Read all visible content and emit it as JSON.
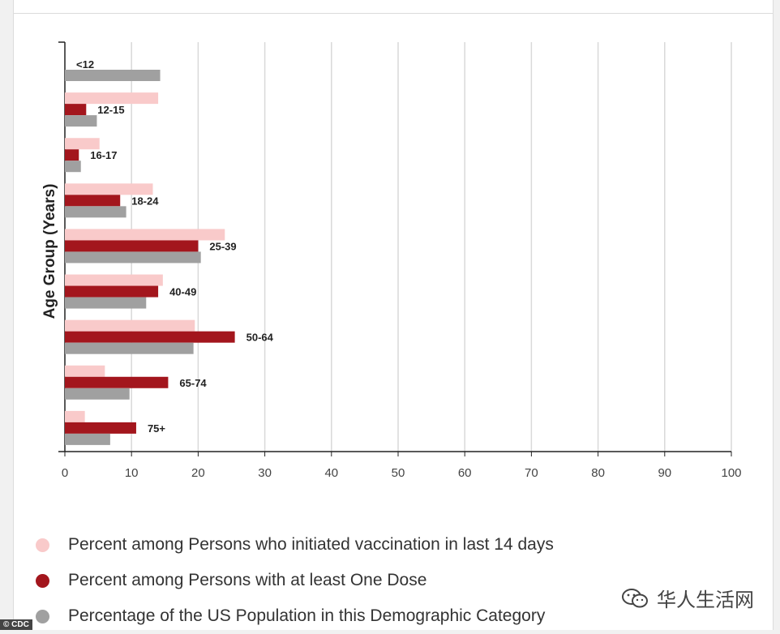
{
  "credit": "© CDC",
  "watermark": "华人生活网",
  "colors": {
    "initiated": "#f9caca",
    "one_dose": "#a3161d",
    "population": "#a0a0a0"
  },
  "chart_data": {
    "type": "bar",
    "orientation": "horizontal",
    "ylabel": "Age Group (Years)",
    "xlabel": "",
    "xlim": [
      0,
      100
    ],
    "x_ticks": [
      0,
      10,
      20,
      30,
      40,
      50,
      60,
      70,
      80,
      90,
      100
    ],
    "grid": "vertical",
    "categories": [
      "<12",
      "12-15",
      "16-17",
      "18-24",
      "25-39",
      "40-49",
      "50-64",
      "65-74",
      "75+"
    ],
    "series": [
      {
        "name": "Percent among Persons who initiated vaccination in last 14 days",
        "color": "#f9caca",
        "values": [
          0,
          14,
          5.2,
          13.2,
          24,
          14.7,
          19.5,
          6,
          3
        ]
      },
      {
        "name": "Percent among Persons with at least One Dose",
        "color": "#a3161d",
        "values": [
          0,
          3.2,
          2.1,
          8.3,
          20,
          14,
          25.5,
          15.5,
          10.7
        ]
      },
      {
        "name": "Percentage of the US Population in this Demographic Category",
        "color": "#a0a0a0",
        "values": [
          14.3,
          4.8,
          2.4,
          9.2,
          20.4,
          12.2,
          19.3,
          9.7,
          6.8
        ]
      }
    ],
    "legend_position": "bottom"
  }
}
